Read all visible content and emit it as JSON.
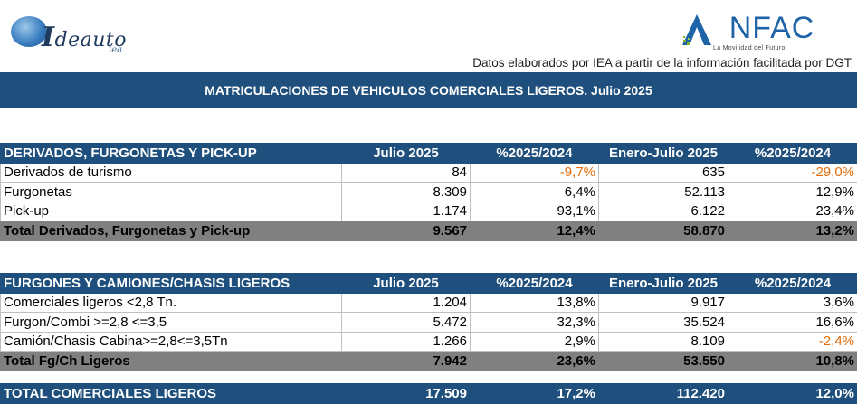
{
  "logos": {
    "left_main": "deauto",
    "left_initial": "I",
    "left_sub": "iea",
    "right_name": "NFAC",
    "right_initial": "A",
    "right_tag": "La Movilidad del Futuro"
  },
  "source_note": "Datos elaborados por IEA a partir de la información facilitada por DGT",
  "title": "MATRICULACIONES DE VEHICULOS COMERCIALES LIGEROS. Julio 2025",
  "table1": {
    "headers": [
      "DERIVADOS, FURGONETAS Y PICK-UP",
      "Julio 2025",
      "%2025/2024",
      "Enero-Julio 2025",
      "%2025/2024"
    ],
    "rows": [
      [
        "Derivados de turismo",
        "84",
        "-9,7%",
        "635",
        "-29,0%"
      ],
      [
        "Furgonetas",
        "8.309",
        "6,4%",
        "52.113",
        "12,9%"
      ],
      [
        "Pick-up",
        "1.174",
        "93,1%",
        "6.122",
        "23,4%"
      ]
    ],
    "total": [
      "Total Derivados, Furgonetas y Pick-up",
      "9.567",
      "12,4%",
      "58.870",
      "13,2%"
    ]
  },
  "table2": {
    "headers": [
      "FURGONES Y CAMIONES/CHASIS LIGEROS",
      "Julio 2025",
      "%2025/2024",
      "Enero-Julio 2025",
      "%2025/2024"
    ],
    "rows": [
      [
        "Comerciales ligeros <2,8 Tn.",
        "1.204",
        "13,8%",
        "9.917",
        "3,6%"
      ],
      [
        "Furgon/Combi >=2,8 <=3,5",
        "5.472",
        "32,3%",
        "35.524",
        "16,6%"
      ],
      [
        "Camión/Chasis Cabina>=2,8<=3,5Tn",
        "1.266",
        "2,9%",
        "8.109",
        "-2,4%"
      ]
    ],
    "total": [
      "Total Fg/Ch Ligeros",
      "7.942",
      "23,6%",
      "53.550",
      "10,8%"
    ]
  },
  "grand_total": [
    "TOTAL COMERCIALES LIGEROS",
    "17.509",
    "17,2%",
    "112.420",
    "12,0%"
  ],
  "colors": {
    "header_blue": "#1f4f7c",
    "total_gray": "#808080",
    "negative": "#e46c0a"
  }
}
